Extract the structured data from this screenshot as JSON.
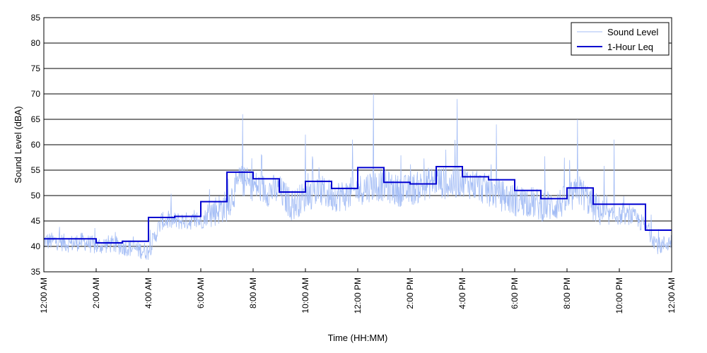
{
  "chart_data": {
    "type": "line",
    "title": "",
    "xlabel": "Time (HH:MM)",
    "ylabel": "Sound Level (dBA)",
    "ylim": [
      35,
      85
    ],
    "xlim_hours": [
      0,
      24
    ],
    "yticks": [
      "35",
      "40",
      "45",
      "50",
      "55",
      "60",
      "65",
      "70",
      "75",
      "80",
      "85"
    ],
    "xticks": [
      "12:00 AM",
      "2:00 AM",
      "4:00 AM",
      "6:00 AM",
      "8:00 AM",
      "10:00 AM",
      "12:00 PM",
      "2:00 PM",
      "4:00 PM",
      "6:00 PM",
      "8:00 PM",
      "10:00 PM",
      "12:00 AM"
    ],
    "grid": "horizontal",
    "legend_position": "top-right",
    "series": [
      {
        "name": "Sound Level",
        "style": "thin-line",
        "color": "#a4bdf5",
        "x_hours": [
          0.0,
          0.5,
          1.0,
          1.5,
          2.0,
          2.5,
          3.0,
          3.5,
          4.0,
          4.5,
          5.0,
          5.5,
          6.0,
          6.5,
          7.0,
          7.5,
          8.0,
          8.5,
          9.0,
          9.5,
          10.0,
          10.5,
          11.0,
          11.5,
          12.0,
          12.5,
          13.0,
          13.5,
          14.0,
          14.5,
          15.0,
          15.5,
          16.0,
          16.5,
          17.0,
          17.5,
          18.0,
          18.5,
          19.0,
          19.5,
          20.0,
          20.5,
          21.0,
          21.5,
          22.0,
          22.5,
          23.0,
          23.5,
          24.0
        ],
        "values": [
          41,
          41,
          40.5,
          41,
          40,
          40.5,
          40,
          39.5,
          39,
          45,
          45,
          45,
          45,
          47,
          48,
          53,
          52,
          51,
          51,
          48,
          50,
          51,
          50,
          50,
          51,
          52,
          52,
          51,
          51,
          52,
          53,
          52,
          53,
          52,
          51,
          50,
          49,
          49,
          48,
          48,
          49,
          51,
          48,
          46,
          46,
          46,
          44,
          40,
          41
        ],
        "peaks": [
          {
            "x_hour": 7.6,
            "value": 66
          },
          {
            "x_hour": 10.0,
            "value": 62
          },
          {
            "x_hour": 11.8,
            "value": 61
          },
          {
            "x_hour": 12.6,
            "value": 70
          },
          {
            "x_hour": 15.8,
            "value": 69
          },
          {
            "x_hour": 17.3,
            "value": 64
          },
          {
            "x_hour": 20.4,
            "value": 65
          },
          {
            "x_hour": 21.8,
            "value": 61
          }
        ]
      },
      {
        "name": "1-Hour Leq",
        "style": "step",
        "color": "#0000d0",
        "hours": [
          0,
          1,
          2,
          3,
          4,
          5,
          6,
          7,
          8,
          9,
          10,
          11,
          12,
          13,
          14,
          15,
          16,
          17,
          18,
          19,
          20,
          21,
          22,
          23
        ],
        "values": [
          41.5,
          41.5,
          40.7,
          41.0,
          45.7,
          45.9,
          48.8,
          54.6,
          53.3,
          50.7,
          52.8,
          51.4,
          55.5,
          52.6,
          52.3,
          55.7,
          53.7,
          53.1,
          51.0,
          49.4,
          51.5,
          48.3,
          48.3,
          43.2
        ]
      }
    ]
  }
}
